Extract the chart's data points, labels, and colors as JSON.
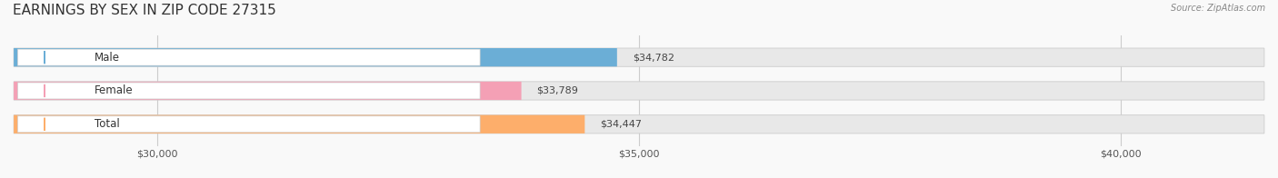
{
  "title": "EARNINGS BY SEX IN ZIP CODE 27315",
  "categories": [
    "Male",
    "Female",
    "Total"
  ],
  "values": [
    34782,
    33789,
    34447
  ],
  "bar_colors": [
    "#6baed6",
    "#f4a0b5",
    "#fdae6b"
  ],
  "bar_bg_color": "#e8e8e8",
  "value_labels": [
    "$34,782",
    "$33,789",
    "$34,447"
  ],
  "tick_labels": [
    "$30,000",
    "$35,000",
    "$40,000"
  ],
  "tick_values": [
    30000,
    35000,
    40000
  ],
  "xlim_min": 28500,
  "xlim_max": 41500,
  "source_text": "Source: ZipAtlas.com",
  "title_fontsize": 11,
  "bar_height": 0.55,
  "background_color": "#f9f9f9"
}
